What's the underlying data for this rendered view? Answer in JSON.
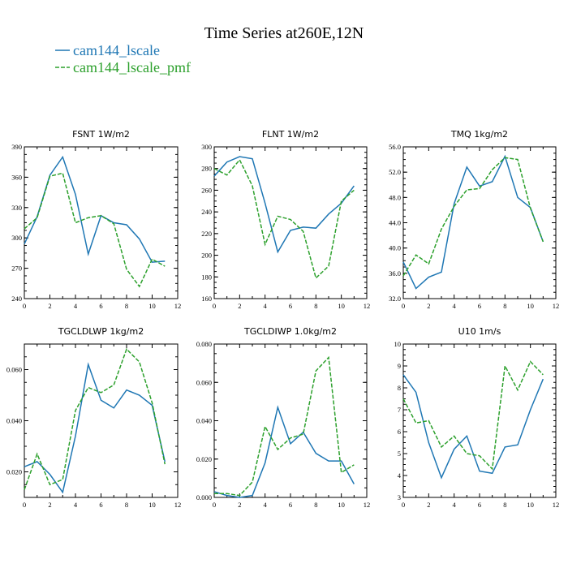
{
  "title": "Time Series at260E,12N",
  "legend": [
    {
      "label": "cam144_lscale",
      "color": "#1f77b4",
      "dash": "solid"
    },
    {
      "label": "cam144_lscale_pmf",
      "color": "#2ca02c",
      "dash": "dashed"
    }
  ],
  "chart_data": [
    {
      "type": "line",
      "title": "FSNT   1W/m2",
      "xlim": [
        0,
        12
      ],
      "ylim": [
        240,
        390
      ],
      "xticks": [
        0,
        2,
        4,
        6,
        8,
        10,
        12
      ],
      "yticks": [
        240,
        270,
        300,
        330,
        360,
        390
      ],
      "ytick_labels": [
        "240",
        "270",
        "300",
        "330",
        "360",
        "390"
      ],
      "x": [
        0,
        1,
        2,
        3,
        4,
        5,
        6,
        7,
        8,
        9,
        10,
        11
      ],
      "series": [
        {
          "name": "cam144_lscale",
          "values": [
            294,
            321,
            362,
            380,
            343,
            284,
            322,
            315,
            313,
            299,
            276,
            277
          ]
        },
        {
          "name": "cam144_lscale_pmf",
          "values": [
            309,
            320,
            361,
            364,
            315,
            320,
            322,
            314,
            269,
            252,
            279,
            272
          ]
        }
      ]
    },
    {
      "type": "line",
      "title": "FLNT   1W/m2",
      "xlim": [
        0,
        12
      ],
      "ylim": [
        160,
        300
      ],
      "xticks": [
        0,
        2,
        4,
        6,
        8,
        10,
        12
      ],
      "yticks": [
        160,
        180,
        200,
        220,
        240,
        260,
        280,
        300
      ],
      "ytick_labels": [
        "160",
        "180",
        "200",
        "220",
        "240",
        "260",
        "280",
        "300"
      ],
      "x": [
        0,
        1,
        2,
        3,
        4,
        5,
        6,
        7,
        8,
        9,
        10,
        11
      ],
      "series": [
        {
          "name": "cam144_lscale",
          "values": [
            273,
            286,
            291,
            289,
            248,
            203,
            223,
            226,
            225,
            238,
            248,
            264
          ]
        },
        {
          "name": "cam144_lscale_pmf",
          "values": [
            280,
            274,
            288,
            264,
            210,
            236,
            233,
            222,
            179,
            190,
            250,
            260
          ]
        }
      ]
    },
    {
      "type": "line",
      "title": "TMQ   1kg/m2",
      "xlim": [
        0,
        12
      ],
      "ylim": [
        32,
        56
      ],
      "xticks": [
        0,
        2,
        4,
        6,
        8,
        10,
        12
      ],
      "yticks": [
        32,
        36,
        40,
        44,
        48,
        52,
        56
      ],
      "ytick_labels": [
        "32.0",
        "36.0",
        "40.0",
        "44.0",
        "48.0",
        "52.0",
        "56.0"
      ],
      "x": [
        0,
        1,
        2,
        3,
        4,
        5,
        6,
        7,
        8,
        9,
        10,
        11
      ],
      "series": [
        {
          "name": "cam144_lscale",
          "values": [
            37.8,
            33.6,
            35.4,
            36.2,
            47.0,
            52.8,
            49.8,
            50.5,
            54.5,
            48.0,
            46.4,
            41.0
          ]
        },
        {
          "name": "cam144_lscale_pmf",
          "values": [
            35.6,
            38.9,
            37.5,
            43.0,
            46.6,
            49.2,
            49.4,
            52.4,
            54.3,
            54.0,
            46.3,
            41.0
          ]
        }
      ]
    },
    {
      "type": "line",
      "title": "TGCLDLWP   1kg/m2",
      "xlim": [
        0,
        12
      ],
      "ylim": [
        0.01,
        0.07
      ],
      "xticks": [
        0,
        2,
        4,
        6,
        8,
        10,
        12
      ],
      "yticks": [
        0.02,
        0.04,
        0.06
      ],
      "ytick_labels": [
        "0.020",
        "0.040",
        "0.060"
      ],
      "x": [
        0,
        1,
        2,
        3,
        4,
        5,
        6,
        7,
        8,
        9,
        10,
        11
      ],
      "series": [
        {
          "name": "cam144_lscale",
          "values": [
            0.022,
            0.024,
            0.019,
            0.012,
            0.034,
            0.062,
            0.048,
            0.045,
            0.052,
            0.05,
            0.046,
            0.024
          ]
        },
        {
          "name": "cam144_lscale_pmf",
          "values": [
            0.013,
            0.027,
            0.015,
            0.017,
            0.044,
            0.053,
            0.051,
            0.054,
            0.068,
            0.063,
            0.047,
            0.023
          ]
        }
      ]
    },
    {
      "type": "line",
      "title": "TGCLDIWP   1.0kg/m2",
      "xlim": [
        0,
        12
      ],
      "ylim": [
        0,
        0.08
      ],
      "xticks": [
        0,
        2,
        4,
        6,
        8,
        10,
        12
      ],
      "yticks": [
        0,
        0.02,
        0.04,
        0.06,
        0.08
      ],
      "ytick_labels": [
        "0.000",
        "0.020",
        "0.040",
        "0.060",
        "0.080"
      ],
      "x": [
        0,
        1,
        2,
        3,
        4,
        5,
        6,
        7,
        8,
        9,
        10,
        11
      ],
      "series": [
        {
          "name": "cam144_lscale",
          "values": [
            0.003,
            0.001,
            0.0,
            0.001,
            0.018,
            0.047,
            0.028,
            0.034,
            0.023,
            0.019,
            0.019,
            0.007
          ]
        },
        {
          "name": "cam144_lscale_pmf",
          "values": [
            0.002,
            0.002,
            0.001,
            0.008,
            0.037,
            0.025,
            0.031,
            0.033,
            0.066,
            0.073,
            0.013,
            0.017
          ]
        }
      ]
    },
    {
      "type": "line",
      "title": "U10   1m/s",
      "xlim": [
        0,
        12
      ],
      "ylim": [
        3,
        10
      ],
      "xticks": [
        0,
        2,
        4,
        6,
        8,
        10,
        12
      ],
      "yticks": [
        3,
        4,
        5,
        6,
        7,
        8,
        9,
        10
      ],
      "ytick_labels": [
        "3",
        "4",
        "5",
        "6",
        "7",
        "8",
        "9",
        "10"
      ],
      "x": [
        0,
        1,
        2,
        3,
        4,
        5,
        6,
        7,
        8,
        9,
        10,
        11
      ],
      "series": [
        {
          "name": "cam144_lscale",
          "values": [
            8.6,
            7.8,
            5.5,
            3.9,
            5.2,
            5.8,
            4.2,
            4.1,
            5.3,
            5.4,
            7.0,
            8.4
          ]
        },
        {
          "name": "cam144_lscale_pmf",
          "values": [
            7.5,
            6.4,
            6.5,
            5.3,
            5.8,
            5.0,
            4.9,
            4.3,
            9.0,
            7.9,
            9.2,
            8.6
          ]
        }
      ]
    }
  ]
}
